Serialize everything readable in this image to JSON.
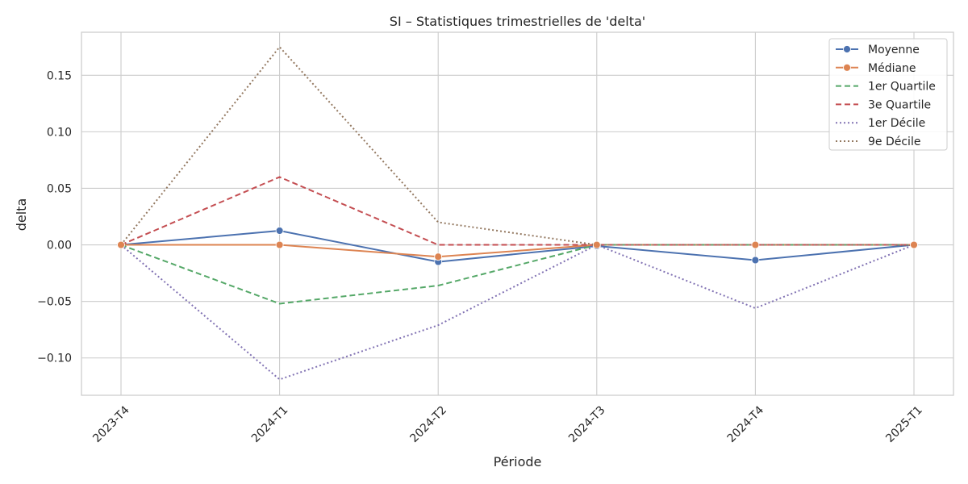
{
  "chart_data": {
    "type": "line",
    "title": "SI – Statistiques trimestrielles de 'delta'",
    "xlabel": "Période",
    "ylabel": "delta",
    "categories": [
      "2023-T4",
      "2024-T1",
      "2024-T2",
      "2024-T3",
      "2024-T4",
      "2025-T1"
    ],
    "ylim": [
      -0.133,
      0.188
    ],
    "yticks": [
      -0.1,
      -0.05,
      0.0,
      0.05,
      0.1,
      0.15
    ],
    "ytick_labels": [
      "−0.10",
      "−0.05",
      "0.00",
      "0.05",
      "0.10",
      "0.15"
    ],
    "grid": true,
    "legend_position": "top-right",
    "series": [
      {
        "name": "Moyenne",
        "color": "#4c72b0",
        "style": "solid",
        "marker": "circle",
        "values": [
          0.0,
          0.0125,
          -0.015,
          -0.001,
          -0.0135,
          0.0
        ]
      },
      {
        "name": "Médiane",
        "color": "#dd8452",
        "style": "solid",
        "marker": "circle",
        "values": [
          0.0,
          0.0,
          -0.0105,
          0.0,
          0.0,
          0.0
        ]
      },
      {
        "name": "1er Quartile",
        "color": "#55a868",
        "style": "dashed",
        "marker": "none",
        "values": [
          0.0,
          -0.052,
          -0.036,
          0.0,
          0.0,
          0.0
        ]
      },
      {
        "name": "3e Quartile",
        "color": "#c44e52",
        "style": "dashed",
        "marker": "none",
        "values": [
          0.0,
          0.06,
          0.0,
          0.0,
          0.0,
          0.0
        ]
      },
      {
        "name": "1er Décile",
        "color": "#8172b3",
        "style": "dotted",
        "marker": "none",
        "values": [
          0.0,
          -0.119,
          -0.071,
          0.0,
          -0.056,
          0.0
        ]
      },
      {
        "name": "9e Décile",
        "color": "#937860",
        "style": "dotted",
        "marker": "none",
        "values": [
          0.0,
          0.175,
          0.02,
          0.0,
          0.0,
          0.0
        ]
      }
    ]
  }
}
